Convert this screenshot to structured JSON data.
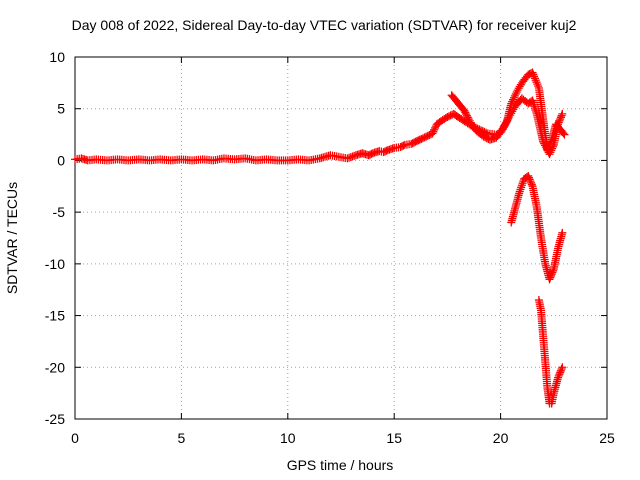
{
  "chart_data": {
    "type": "scatter",
    "title": "Day 008 of 2022, Sidereal Day-to-day VTEC variation (SDTVAR) for receiver kuj2",
    "xlabel": "GPS time / hours",
    "ylabel": "SDTVAR / TECUs",
    "xlim": [
      0,
      25
    ],
    "ylim": [
      -25,
      10
    ],
    "x_ticks": [
      0,
      5,
      10,
      15,
      20,
      25
    ],
    "x_tick_labels": [
      "0",
      "5",
      "10",
      "15",
      "20",
      "25"
    ],
    "y_ticks": [
      10,
      5,
      0,
      -5,
      -10,
      -15,
      -20,
      -25
    ],
    "y_tick_labels": [
      "10",
      "5",
      "0",
      "-5",
      "-10",
      "-15",
      "-20",
      "-25"
    ],
    "grid": true,
    "marker": "+",
    "marker_color": "#ff0000",
    "series": [
      {
        "values": [
          [
            0.0,
            0.1
          ],
          [
            0.3,
            0.2
          ],
          [
            0.6,
            0.0
          ],
          [
            1.0,
            0.1
          ],
          [
            1.5,
            0.0
          ],
          [
            2.0,
            0.1
          ],
          [
            2.5,
            0.0
          ],
          [
            3.0,
            0.1
          ],
          [
            3.5,
            0.0
          ],
          [
            4.0,
            0.1
          ],
          [
            4.5,
            0.0
          ],
          [
            5.0,
            0.1
          ],
          [
            5.5,
            0.0
          ],
          [
            6.0,
            0.1
          ],
          [
            6.5,
            0.0
          ],
          [
            7.0,
            0.2
          ],
          [
            7.5,
            0.1
          ],
          [
            8.0,
            0.2
          ],
          [
            8.5,
            0.0
          ],
          [
            9.0,
            0.1
          ],
          [
            9.5,
            0.0
          ],
          [
            10.0,
            0.0
          ],
          [
            10.5,
            0.1
          ],
          [
            11.0,
            0.0
          ],
          [
            11.5,
            0.2
          ],
          [
            12.0,
            0.5
          ],
          [
            12.8,
            0.2
          ],
          [
            13.2,
            0.5
          ],
          [
            13.5,
            0.7
          ],
          [
            13.8,
            0.5
          ],
          [
            14.0,
            0.7
          ],
          [
            14.3,
            0.9
          ],
          [
            14.5,
            0.8
          ],
          [
            14.7,
            1.0
          ],
          [
            15.0,
            1.2
          ],
          [
            15.3,
            1.3
          ],
          [
            15.5,
            1.5
          ],
          [
            15.8,
            1.6
          ],
          [
            16.0,
            1.8
          ],
          [
            16.2,
            2.0
          ],
          [
            16.5,
            2.3
          ],
          [
            16.8,
            2.6
          ],
          [
            17.0,
            3.5
          ],
          [
            17.2,
            3.8
          ],
          [
            17.5,
            4.2
          ],
          [
            17.8,
            4.5
          ],
          [
            18.0,
            4.2
          ],
          [
            18.3,
            3.8
          ],
          [
            18.6,
            3.4
          ],
          [
            19.0,
            3.0
          ],
          [
            19.4,
            2.6
          ],
          [
            19.8,
            2.5
          ],
          [
            20.0,
            2.7
          ],
          [
            20.3,
            3.8
          ],
          [
            20.5,
            5.5
          ],
          [
            20.8,
            6.8
          ],
          [
            21.0,
            7.5
          ],
          [
            21.3,
            8.3
          ],
          [
            21.5,
            8.5
          ],
          [
            21.8,
            7.0
          ],
          [
            22.0,
            4.0
          ],
          [
            22.2,
            1.0
          ],
          [
            22.4,
            2.0
          ],
          [
            22.6,
            3.5
          ],
          [
            22.8,
            3.0
          ],
          [
            23.0,
            2.5
          ]
        ]
      },
      {
        "values": [
          [
            17.7,
            6.3
          ],
          [
            17.9,
            5.8
          ],
          [
            18.1,
            5.3
          ],
          [
            18.3,
            4.8
          ],
          [
            18.5,
            4.0
          ],
          [
            18.7,
            3.3
          ],
          [
            18.9,
            2.8
          ],
          [
            19.2,
            2.3
          ],
          [
            19.5,
            2.0
          ],
          [
            19.8,
            2.2
          ],
          [
            20.1,
            3.0
          ],
          [
            20.4,
            4.2
          ],
          [
            20.7,
            5.3
          ],
          [
            21.0,
            6.0
          ],
          [
            21.3,
            5.5
          ],
          [
            21.5,
            5.8
          ],
          [
            21.7,
            4.5
          ],
          [
            22.0,
            1.8
          ],
          [
            22.3,
            0.6
          ],
          [
            22.5,
            1.5
          ],
          [
            22.7,
            3.5
          ],
          [
            22.9,
            4.5
          ]
        ]
      },
      {
        "values": [
          [
            20.5,
            -6.0
          ],
          [
            20.7,
            -4.5
          ],
          [
            20.9,
            -3.0
          ],
          [
            21.1,
            -1.8
          ],
          [
            21.3,
            -1.5
          ],
          [
            21.5,
            -2.5
          ],
          [
            21.7,
            -4.5
          ],
          [
            21.9,
            -7.5
          ],
          [
            22.1,
            -10.0
          ],
          [
            22.3,
            -11.5
          ],
          [
            22.5,
            -10.5
          ],
          [
            22.7,
            -8.5
          ],
          [
            22.9,
            -7.0
          ]
        ]
      },
      {
        "values": [
          [
            21.8,
            -13.5
          ],
          [
            21.9,
            -14.5
          ],
          [
            22.0,
            -17.0
          ],
          [
            22.1,
            -19.5
          ],
          [
            22.2,
            -22.0
          ],
          [
            22.3,
            -23.5
          ],
          [
            22.4,
            -23.5
          ],
          [
            22.5,
            -22.5
          ],
          [
            22.7,
            -21.0
          ],
          [
            22.9,
            -20.0
          ]
        ]
      }
    ]
  }
}
